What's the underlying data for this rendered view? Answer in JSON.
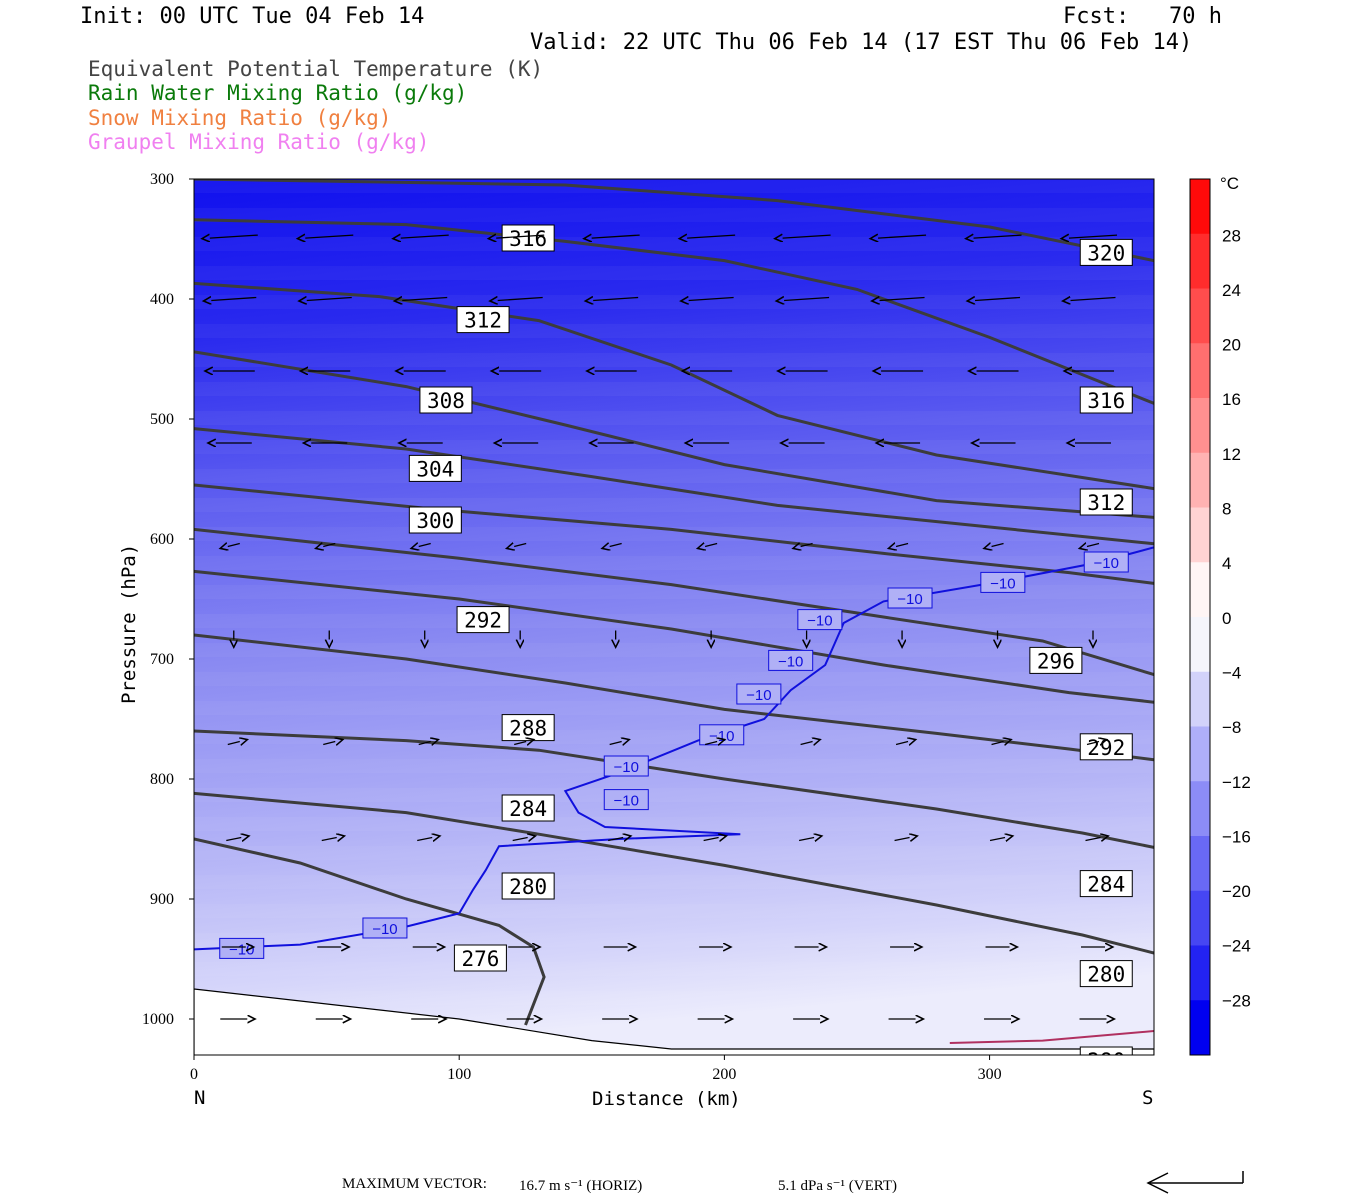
{
  "header": {
    "init": "Init: 00 UTC Tue 04 Feb 14",
    "fcst": "Fcst:   70 h",
    "valid": "Valid: 22 UTC Thu 06 Feb 14 (17 EST Thu 06 Feb 14)"
  },
  "legend": [
    {
      "label": "Equivalent Potential Temperature (K)",
      "color": "#444444"
    },
    {
      "label": "Rain Water Mixing Ratio (g/kg)",
      "color": "#0a7a0a"
    },
    {
      "label": "Snow Mixing Ratio (g/kg)",
      "color": "#f08040"
    },
    {
      "label": "Graupel Mixing Ratio (g/kg)",
      "color": "#f080f0"
    }
  ],
  "footer": {
    "label": "MAXIMUM VECTOR:",
    "horiz": "16.7 m s⁻¹ (HORIZ)",
    "vert": "5.1 dPa s⁻¹ (VERT)"
  },
  "chart_data": {
    "type": "heatmap",
    "xlabel": "Distance (km)",
    "ylabel": "Pressure (hPa)",
    "xlim": [
      0,
      362
    ],
    "ylim": [
      1030,
      300
    ],
    "x_ticks": [
      0,
      100,
      200,
      300
    ],
    "y_ticks": [
      300,
      400,
      500,
      600,
      700,
      800,
      900,
      1000
    ],
    "x_end_labels": {
      "left": "N",
      "right": "S"
    },
    "colorbar": {
      "unit": "°C",
      "tick_labels": [
        "28",
        "24",
        "20",
        "16",
        "12",
        "8",
        "4",
        "0",
        "−4",
        "−8",
        "−12",
        "−16",
        "−20",
        "−24",
        "−28"
      ],
      "tick_values": [
        28,
        24,
        20,
        16,
        12,
        8,
        4,
        0,
        -4,
        -8,
        -12,
        -16,
        -20,
        -24,
        -28
      ],
      "range": [
        -32,
        32
      ]
    },
    "theta_e_contours": [
      {
        "label": "276",
        "points": [
          [
            0,
            850
          ],
          [
            40,
            870
          ],
          [
            80,
            900
          ],
          [
            115,
            922
          ],
          [
            128,
            940
          ],
          [
            132,
            965
          ],
          [
            125,
            1005
          ]
        ]
      },
      {
        "label": "280",
        "points": [
          [
            0,
            812
          ],
          [
            80,
            828
          ],
          [
            130,
            846
          ],
          [
            200,
            872
          ],
          [
            280,
            905
          ],
          [
            335,
            930
          ],
          [
            362,
            945
          ]
        ]
      },
      {
        "label": "284",
        "points": [
          [
            0,
            760
          ],
          [
            80,
            768
          ],
          [
            130,
            776
          ],
          [
            200,
            800
          ],
          [
            280,
            825
          ],
          [
            335,
            845
          ],
          [
            362,
            857
          ]
        ]
      },
      {
        "label": "288",
        "points": [
          [
            0,
            680
          ],
          [
            80,
            700
          ],
          [
            140,
            720
          ],
          [
            200,
            742
          ],
          [
            280,
            762
          ],
          [
            330,
            775
          ],
          [
            362,
            784
          ]
        ]
      },
      {
        "label": "292",
        "points": [
          [
            0,
            627
          ],
          [
            100,
            650
          ],
          [
            180,
            675
          ],
          [
            260,
            705
          ],
          [
            330,
            728
          ],
          [
            362,
            736
          ]
        ]
      },
      {
        "label": "296",
        "points": [
          [
            0,
            592
          ],
          [
            100,
            616
          ],
          [
            180,
            638
          ],
          [
            260,
            665
          ],
          [
            320,
            685
          ],
          [
            362,
            713
          ]
        ]
      },
      {
        "label": "300",
        "points": [
          [
            0,
            555
          ],
          [
            90,
            575
          ],
          [
            180,
            592
          ],
          [
            260,
            612
          ],
          [
            330,
            628
          ],
          [
            362,
            637
          ]
        ]
      },
      {
        "label": "304",
        "points": [
          [
            0,
            508
          ],
          [
            80,
            525
          ],
          [
            150,
            548
          ],
          [
            220,
            572
          ],
          [
            300,
            590
          ],
          [
            362,
            604
          ]
        ]
      },
      {
        "label": "308",
        "points": [
          [
            0,
            444
          ],
          [
            80,
            473
          ],
          [
            140,
            505
          ],
          [
            200,
            538
          ],
          [
            280,
            568
          ],
          [
            362,
            582
          ]
        ]
      },
      {
        "label": "312",
        "points": [
          [
            0,
            387
          ],
          [
            70,
            398
          ],
          [
            130,
            418
          ],
          [
            180,
            455
          ],
          [
            220,
            497
          ],
          [
            280,
            530
          ],
          [
            362,
            558
          ]
        ]
      },
      {
        "label": "316",
        "points": [
          [
            0,
            334
          ],
          [
            80,
            338
          ],
          [
            140,
            352
          ],
          [
            200,
            368
          ],
          [
            250,
            392
          ],
          [
            300,
            432
          ],
          [
            362,
            487
          ]
        ]
      },
      {
        "label": "320",
        "points": [
          [
            0,
            300
          ],
          [
            140,
            305
          ],
          [
            220,
            318
          ],
          [
            300,
            340
          ],
          [
            362,
            368
          ]
        ]
      }
    ],
    "temperature_contours": [
      {
        "label": "−10",
        "points": [
          [
            0,
            942
          ],
          [
            40,
            938
          ],
          [
            80,
            923
          ],
          [
            100,
            912
          ],
          [
            105,
            893
          ],
          [
            110,
            876
          ],
          [
            115,
            856
          ],
          [
            160,
            850
          ],
          [
            206,
            846
          ],
          [
            155,
            840
          ],
          [
            145,
            828
          ],
          [
            140,
            810
          ],
          [
            160,
            795
          ],
          [
            190,
            768
          ],
          [
            215,
            750
          ],
          [
            225,
            726
          ],
          [
            238,
            705
          ],
          [
            245,
            670
          ],
          [
            260,
            652
          ],
          [
            300,
            637
          ],
          [
            340,
            620
          ],
          [
            362,
            607
          ]
        ]
      },
      {
        "label": "0",
        "points": [
          [
            285,
            1020
          ],
          [
            320,
            1018
          ],
          [
            362,
            1010
          ]
        ]
      }
    ],
    "contour_label_positions": [
      {
        "label": "316",
        "x": 126,
        "p": 350
      },
      {
        "label": "320",
        "x": 344,
        "p": 362
      },
      {
        "label": "312",
        "x": 109,
        "p": 418
      },
      {
        "label": "316",
        "x": 344,
        "p": 485
      },
      {
        "label": "308",
        "x": 95,
        "p": 485
      },
      {
        "label": "304",
        "x": 91,
        "p": 542
      },
      {
        "label": "312",
        "x": 344,
        "p": 570
      },
      {
        "label": "300",
        "x": 91,
        "p": 585
      },
      {
        "label": "292",
        "x": 109,
        "p": 668
      },
      {
        "label": "296",
        "x": 325,
        "p": 702
      },
      {
        "label": "288",
        "x": 126,
        "p": 758
      },
      {
        "label": "292",
        "x": 344,
        "p": 774
      },
      {
        "label": "284",
        "x": 126,
        "p": 825
      },
      {
        "label": "280",
        "x": 126,
        "p": 890
      },
      {
        "label": "284",
        "x": 344,
        "p": 888
      },
      {
        "label": "276",
        "x": 108,
        "p": 950
      },
      {
        "label": "280",
        "x": 344,
        "p": 963
      },
      {
        "label": "280",
        "x": 344,
        "p": 1035
      }
    ],
    "wind_rows": [
      {
        "p": 348,
        "u": -16,
        "w": 1
      },
      {
        "p": 400,
        "u": -15,
        "w": 1
      },
      {
        "p": 460,
        "u": -14,
        "w": 0
      },
      {
        "p": 520,
        "u": -12,
        "w": 0
      },
      {
        "p": 605,
        "u": -4,
        "w": 1
      },
      {
        "p": 680,
        "u": 0,
        "w": 3
      },
      {
        "p": 770,
        "u": 4,
        "w": -1
      },
      {
        "p": 850,
        "u": 5,
        "w": -1
      },
      {
        "p": 940,
        "u": 8,
        "w": 0
      },
      {
        "p": 1000,
        "u": 9,
        "w": 0
      }
    ]
  }
}
